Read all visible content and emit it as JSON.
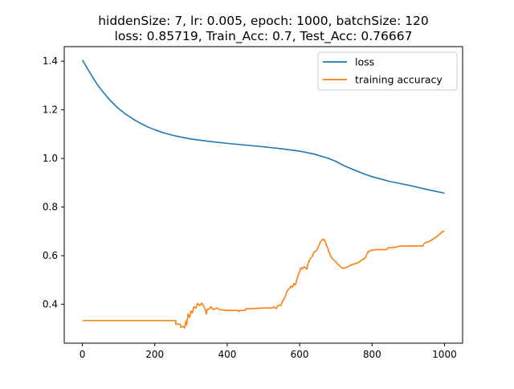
{
  "chart_data": {
    "type": "line",
    "title": "hiddenSize: 7, lr: 0.005, epoch: 1000, batchSize: 120",
    "subtitle": "loss: 0.85719, Train_Acc: 0.7, Test_Acc: 0.76667",
    "xlabel": "",
    "ylabel": "",
    "xlim": [
      -50,
      1050
    ],
    "ylim": [
      0.24,
      1.46
    ],
    "x_ticks": [
      0,
      200,
      400,
      600,
      800,
      1000
    ],
    "x_tick_labels": [
      "0",
      "200",
      "400",
      "600",
      "800",
      "1000"
    ],
    "y_ticks": [
      0.4,
      0.6,
      0.8,
      1.0,
      1.2,
      1.4
    ],
    "y_tick_labels": [
      "0.4",
      "0.6",
      "0.8",
      "1.0",
      "1.2",
      "1.4"
    ],
    "grid": false,
    "legend_position": "top-right",
    "series": [
      {
        "name": "loss",
        "color": "#1f77b4",
        "step": false,
        "points": [
          [
            0,
            1.405
          ],
          [
            10,
            1.38
          ],
          [
            20,
            1.355
          ],
          [
            30,
            1.33
          ],
          [
            40,
            1.307
          ],
          [
            50,
            1.287
          ],
          [
            60,
            1.268
          ],
          [
            75,
            1.242
          ],
          [
            90,
            1.219
          ],
          [
            100,
            1.205
          ],
          [
            120,
            1.182
          ],
          [
            140,
            1.162
          ],
          [
            160,
            1.145
          ],
          [
            180,
            1.13
          ],
          [
            200,
            1.118
          ],
          [
            225,
            1.105
          ],
          [
            250,
            1.095
          ],
          [
            275,
            1.087
          ],
          [
            300,
            1.08
          ],
          [
            350,
            1.07
          ],
          [
            400,
            1.062
          ],
          [
            450,
            1.055
          ],
          [
            500,
            1.048
          ],
          [
            550,
            1.04
          ],
          [
            600,
            1.03
          ],
          [
            640,
            1.018
          ],
          [
            680,
            1.0
          ],
          [
            700,
            0.988
          ],
          [
            720,
            0.972
          ],
          [
            750,
            0.953
          ],
          [
            780,
            0.935
          ],
          [
            800,
            0.925
          ],
          [
            850,
            0.905
          ],
          [
            900,
            0.89
          ],
          [
            950,
            0.873
          ],
          [
            1000,
            0.857
          ]
        ]
      },
      {
        "name": "training accuracy",
        "color": "#ff7f0e",
        "step": true,
        "points": [
          [
            0,
            0.333
          ],
          [
            258,
            0.333
          ],
          [
            258,
            0.318
          ],
          [
            270,
            0.318
          ],
          [
            272,
            0.305
          ],
          [
            278,
            0.31
          ],
          [
            282,
            0.302
          ],
          [
            286,
            0.33
          ],
          [
            288,
            0.315
          ],
          [
            292,
            0.36
          ],
          [
            296,
            0.345
          ],
          [
            300,
            0.372
          ],
          [
            304,
            0.365
          ],
          [
            308,
            0.39
          ],
          [
            314,
            0.385
          ],
          [
            318,
            0.403
          ],
          [
            324,
            0.395
          ],
          [
            330,
            0.405
          ],
          [
            336,
            0.39
          ],
          [
            340,
            0.375
          ],
          [
            342,
            0.36
          ],
          [
            345,
            0.38
          ],
          [
            350,
            0.38
          ],
          [
            355,
            0.39
          ],
          [
            362,
            0.378
          ],
          [
            372,
            0.385
          ],
          [
            380,
            0.378
          ],
          [
            400,
            0.375
          ],
          [
            430,
            0.375
          ],
          [
            432,
            0.37
          ],
          [
            436,
            0.375
          ],
          [
            450,
            0.375
          ],
          [
            452,
            0.382
          ],
          [
            470,
            0.382
          ],
          [
            500,
            0.385
          ],
          [
            525,
            0.385
          ],
          [
            528,
            0.39
          ],
          [
            535,
            0.382
          ],
          [
            540,
            0.395
          ],
          [
            548,
            0.395
          ],
          [
            552,
            0.41
          ],
          [
            556,
            0.42
          ],
          [
            560,
            0.43
          ],
          [
            564,
            0.45
          ],
          [
            568,
            0.46
          ],
          [
            572,
            0.465
          ],
          [
            576,
            0.475
          ],
          [
            580,
            0.47
          ],
          [
            584,
            0.485
          ],
          [
            588,
            0.48
          ],
          [
            592,
            0.5
          ],
          [
            596,
            0.52
          ],
          [
            600,
            0.535
          ],
          [
            604,
            0.55
          ],
          [
            608,
            0.545
          ],
          [
            612,
            0.555
          ],
          [
            616,
            0.55
          ],
          [
            620,
            0.545
          ],
          [
            624,
            0.57
          ],
          [
            628,
            0.585
          ],
          [
            634,
            0.595
          ],
          [
            640,
            0.615
          ],
          [
            646,
            0.62
          ],
          [
            650,
            0.63
          ],
          [
            654,
            0.645
          ],
          [
            658,
            0.658
          ],
          [
            662,
            0.665
          ],
          [
            666,
            0.668
          ],
          [
            670,
            0.66
          ],
          [
            674,
            0.643
          ],
          [
            678,
            0.63
          ],
          [
            682,
            0.61
          ],
          [
            686,
            0.598
          ],
          [
            690,
            0.588
          ],
          [
            696,
            0.58
          ],
          [
            700,
            0.575
          ],
          [
            705,
            0.565
          ],
          [
            710,
            0.56
          ],
          [
            714,
            0.552
          ],
          [
            720,
            0.548
          ],
          [
            730,
            0.552
          ],
          [
            740,
            0.56
          ],
          [
            748,
            0.565
          ],
          [
            760,
            0.57
          ],
          [
            770,
            0.58
          ],
          [
            782,
            0.592
          ],
          [
            785,
            0.605
          ],
          [
            790,
            0.618
          ],
          [
            800,
            0.622
          ],
          [
            810,
            0.625
          ],
          [
            830,
            0.625
          ],
          [
            840,
            0.625
          ],
          [
            845,
            0.633
          ],
          [
            860,
            0.633
          ],
          [
            880,
            0.64
          ],
          [
            940,
            0.64
          ],
          [
            945,
            0.652
          ],
          [
            960,
            0.66
          ],
          [
            972,
            0.672
          ],
          [
            980,
            0.68
          ],
          [
            988,
            0.69
          ],
          [
            995,
            0.7
          ],
          [
            1000,
            0.7
          ]
        ]
      }
    ]
  }
}
